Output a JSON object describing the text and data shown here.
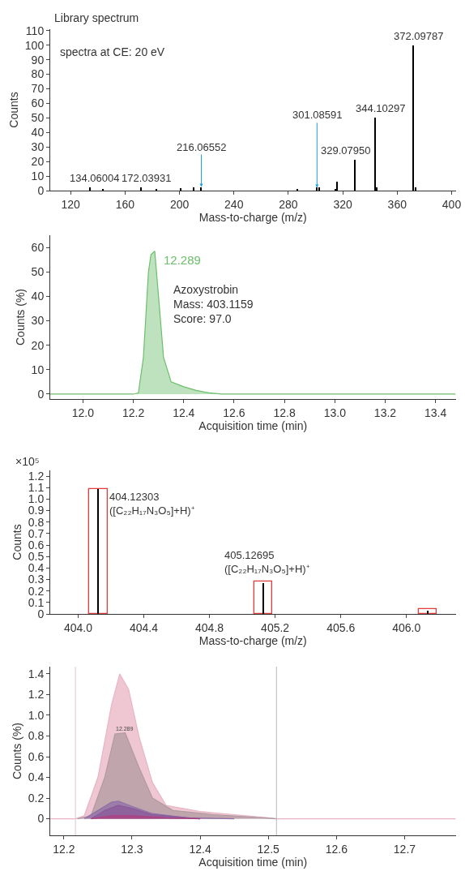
{
  "chart_data": [
    {
      "type": "bar",
      "title": "Library spectrum",
      "subtitle": "spectra at CE: 20 eV",
      "xlabel": "Mass-to-charge (m/z)",
      "ylabel": "Counts",
      "series": [
        {
          "color": "#000000",
          "x": [
            134.06004,
            144.0,
            172.03931,
            183.0,
            201.0,
            210.5,
            216.06552,
            287.0,
            301.08591,
            303.0,
            315.0,
            316.0,
            329.0795,
            344.10297,
            345.0,
            372.09787,
            373.5
          ],
          "values": [
            2,
            1,
            2.5,
            1,
            1.5,
            2,
            2.5,
            1,
            2,
            2,
            1,
            6,
            21,
            50,
            2,
            100,
            2
          ]
        }
      ],
      "annotations": [
        {
          "text": "134.06004",
          "x": 134.06004,
          "y": 2
        },
        {
          "text": "172.03931",
          "x": 172.03931,
          "y": 2.5
        },
        {
          "text": "216.06552",
          "x": 216.06552,
          "y": 2.5
        },
        {
          "text": "301.08591",
          "x": 301.08591,
          "y": 2
        },
        {
          "text": "329.07950",
          "x": 329.0795,
          "y": 21
        },
        {
          "text": "344.10297",
          "x": 344.10297,
          "y": 50
        },
        {
          "text": "372.09787",
          "x": 372.09787,
          "y": 100
        }
      ],
      "xlim": [
        105,
        403
      ],
      "xticks": [
        120,
        160,
        200,
        240,
        280,
        320,
        360,
        400
      ],
      "ylim": [
        0,
        111
      ],
      "yticks": [
        0,
        10,
        20,
        30,
        40,
        50,
        60,
        70,
        80,
        90,
        100,
        110
      ]
    },
    {
      "type": "area",
      "xlabel": "Acquisition time (min)",
      "ylabel": "Counts (%)",
      "series": [
        {
          "color": "#6cbf6c",
          "x": [
            11.87,
            12.2,
            12.22,
            12.24,
            12.26,
            12.27,
            12.285,
            12.3,
            12.32,
            12.35,
            12.4,
            12.45,
            12.5,
            12.55,
            13.48
          ],
          "values": [
            0,
            0,
            0.5,
            15,
            50,
            57,
            58.5,
            40,
            15,
            5,
            3,
            1.5,
            0.5,
            0,
            0
          ]
        }
      ],
      "annotations": [
        {
          "text": "12.289",
          "x": 12.289,
          "y": 58.5
        },
        "Azoxystrobin\nMass: 403.1159\nScore: 97.0"
      ],
      "xlim": [
        11.87,
        13.48
      ],
      "xticks": [
        {
          "value": 12,
          "label": "12.0"
        },
        12.2,
        12.4,
        12.6,
        12.8,
        {
          "value": 13,
          "label": "13.0"
        },
        13.2,
        13.4
      ],
      "ylim": [
        -2,
        65
      ],
      "yticks": [
        0,
        10,
        20,
        30,
        40,
        50,
        60
      ]
    },
    {
      "type": "bar",
      "xlabel": "Mass-to-charge (m/z)",
      "ylabel": "Counts",
      "series": [
        {
          "color": "#e03c3c",
          "x": [
            404.12303,
            405.12695,
            406.13
          ],
          "values": [
            1.09,
            0.28,
            0.04
          ]
        },
        {
          "color": "#000000",
          "x": [
            404.12303,
            405.12695,
            406.13
          ],
          "values": [
            1.09,
            0.27,
            0.03
          ]
        }
      ],
      "annotations": [
        {
          "text": "404.12303\n([C₂₂H₁₇N₃O₅]+H)⁺",
          "x": 404.12303,
          "y": 1.09
        },
        {
          "text": "405.12695\n([C₂₂H₁₇N₃O₅]+H)⁺",
          "x": 405.12695,
          "y": 0.28
        },
        "×10⁵"
      ],
      "xlim": [
        403.83,
        406.3
      ],
      "xticks": [
        {
          "value": 404,
          "label": "404.0"
        },
        404.4,
        404.8,
        405.2,
        405.6,
        {
          "value": 406,
          "label": "406.0"
        }
      ],
      "ylim": [
        0,
        1.25
      ],
      "yticks": [
        0,
        0.1,
        0.2,
        0.3,
        0.4,
        0.5,
        0.6,
        0.7,
        0.8,
        0.9,
        {
          "value": 1,
          "label": "1.0"
        },
        1.1,
        1.2
      ]
    },
    {
      "type": "area",
      "xlabel": "Acquisition time (min)",
      "ylabel": "Counts (%)",
      "series": [
        {
          "color": "#e8b4c4",
          "x": [
            12.18,
            12.217,
            12.23,
            12.25,
            12.27,
            12.282,
            12.295,
            12.31,
            12.33,
            12.35,
            12.4,
            12.45,
            12.5,
            12.512,
            12.775
          ],
          "values": [
            0,
            0,
            0.03,
            0.4,
            1.1,
            1.4,
            1.25,
            0.8,
            0.35,
            0.13,
            0.07,
            0.04,
            0.01,
            0,
            0
          ]
        },
        {
          "color": "#b09aa0",
          "x": [
            12.22,
            12.24,
            12.26,
            12.275,
            12.29,
            12.31,
            12.33,
            12.36,
            12.42,
            12.5,
            12.512
          ],
          "values": [
            0,
            0.03,
            0.4,
            0.82,
            0.83,
            0.5,
            0.2,
            0.08,
            0.04,
            0.005,
            0
          ]
        },
        {
          "color": "#9070a8",
          "x": [
            12.23,
            12.25,
            12.27,
            12.28,
            12.3,
            12.33,
            12.38,
            12.45
          ],
          "values": [
            0,
            0.08,
            0.16,
            0.17,
            0.12,
            0.05,
            0.01,
            0
          ]
        },
        {
          "color": "#8a5a9a",
          "x": [
            12.24,
            12.26,
            12.28,
            12.3,
            12.33,
            12.4
          ],
          "values": [
            0,
            0.08,
            0.13,
            0.1,
            0.04,
            0
          ]
        },
        {
          "color": "#b04080",
          "x": [
            12.24,
            12.27,
            12.3,
            12.35,
            12.4
          ],
          "values": [
            0,
            0.03,
            0.03,
            0.01,
            0
          ]
        }
      ],
      "annotations": [
        {
          "text": "12.289",
          "x": 12.289,
          "y": 0.83
        }
      ],
      "ref_lines": [
        {
          "axis": "x",
          "value": 12.217,
          "color": "#d8c8c8"
        },
        {
          "axis": "x",
          "value": 12.512,
          "color": "#b8b8b8"
        }
      ],
      "xlim": [
        12.18,
        12.775
      ],
      "xticks": [
        12.2,
        12.3,
        12.4,
        12.5,
        12.6,
        12.7
      ],
      "ylim": [
        -0.16,
        1.47
      ],
      "yticks": [
        0,
        0.2,
        0.4,
        0.6,
        0.8,
        {
          "value": 1,
          "label": "1.0"
        },
        1.2,
        1.4
      ]
    }
  ]
}
